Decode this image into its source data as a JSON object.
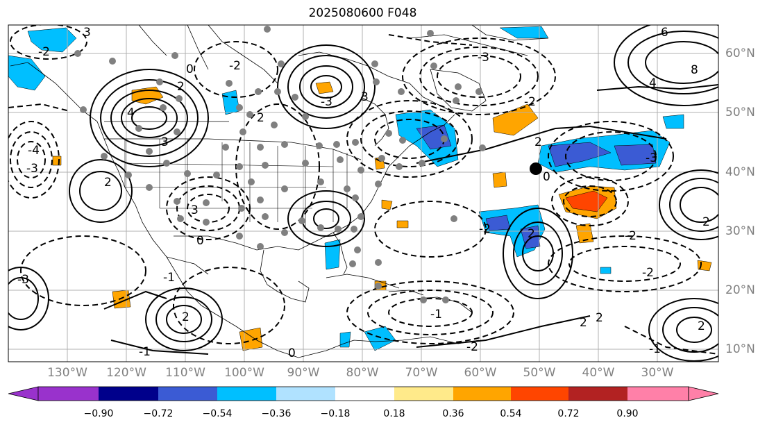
{
  "title": "2025080600 F048",
  "map": {
    "lon_labels": [
      "130°W",
      "120°W",
      "110°W",
      "100°W",
      "90°W",
      "80°W",
      "70°W",
      "60°W",
      "50°W",
      "40°W",
      "30°W"
    ],
    "lat_labels": [
      "60°N",
      "50°N",
      "40°N",
      "30°N",
      "20°N",
      "10°N"
    ],
    "contour_labels": [
      "3",
      "2",
      "-2",
      "0",
      "4",
      "3",
      "-3",
      "3",
      "-4",
      "-3",
      "2",
      "2",
      "-2",
      "3",
      "-3",
      "6",
      "8",
      "4",
      "-3",
      "2",
      "0",
      "-1",
      "2",
      "-2",
      "-2",
      "2",
      "2",
      "-3",
      "-1",
      "-2",
      "-1",
      "2",
      "0",
      "-2",
      "2",
      "-2",
      "0",
      "-1",
      "2"
    ]
  },
  "colorbar": {
    "tick_labels": [
      "−0.90",
      "−0.72",
      "−0.54",
      "−0.36",
      "−0.18",
      "0.18",
      "0.36",
      "0.54",
      "0.72",
      "0.90"
    ],
    "colors": [
      "#9932cc",
      "#00008b",
      "#3b5bd4",
      "#00bfff",
      "#b0e2ff",
      "#ffffff",
      "#ffea8a",
      "#ffa500",
      "#ff4500",
      "#b22222",
      "#ff80a8"
    ]
  }
}
